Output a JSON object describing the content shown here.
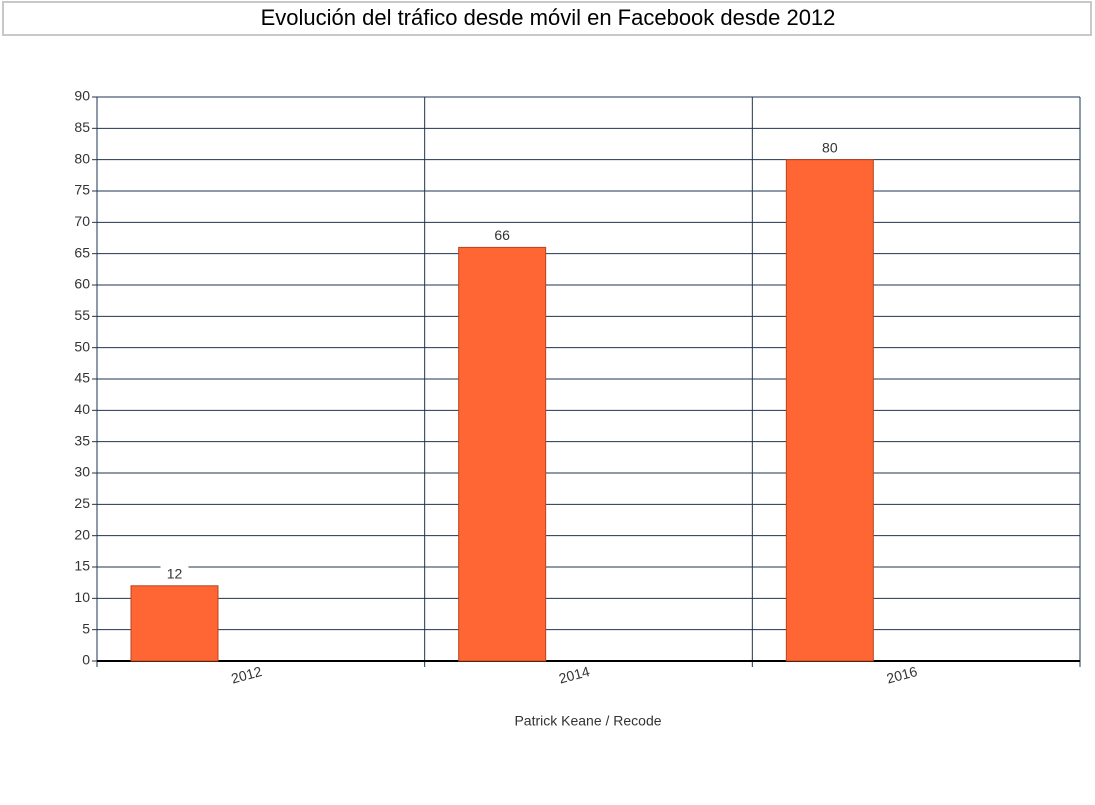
{
  "chart_data": {
    "type": "bar",
    "title": "Evolución del tráfico desde móvil en Facebook desde 2012",
    "categories": [
      "2012",
      "2014",
      "2016"
    ],
    "values": [
      12,
      66,
      80
    ],
    "color": "#ff6633",
    "x_label": "Patrick Keane / Recode",
    "ylim": [
      0,
      90
    ],
    "yticks": [
      0,
      5,
      10,
      15,
      20,
      25,
      30,
      35,
      40,
      45,
      50,
      55,
      60,
      65,
      70,
      75,
      80,
      85,
      90
    ],
    "grid": true
  }
}
